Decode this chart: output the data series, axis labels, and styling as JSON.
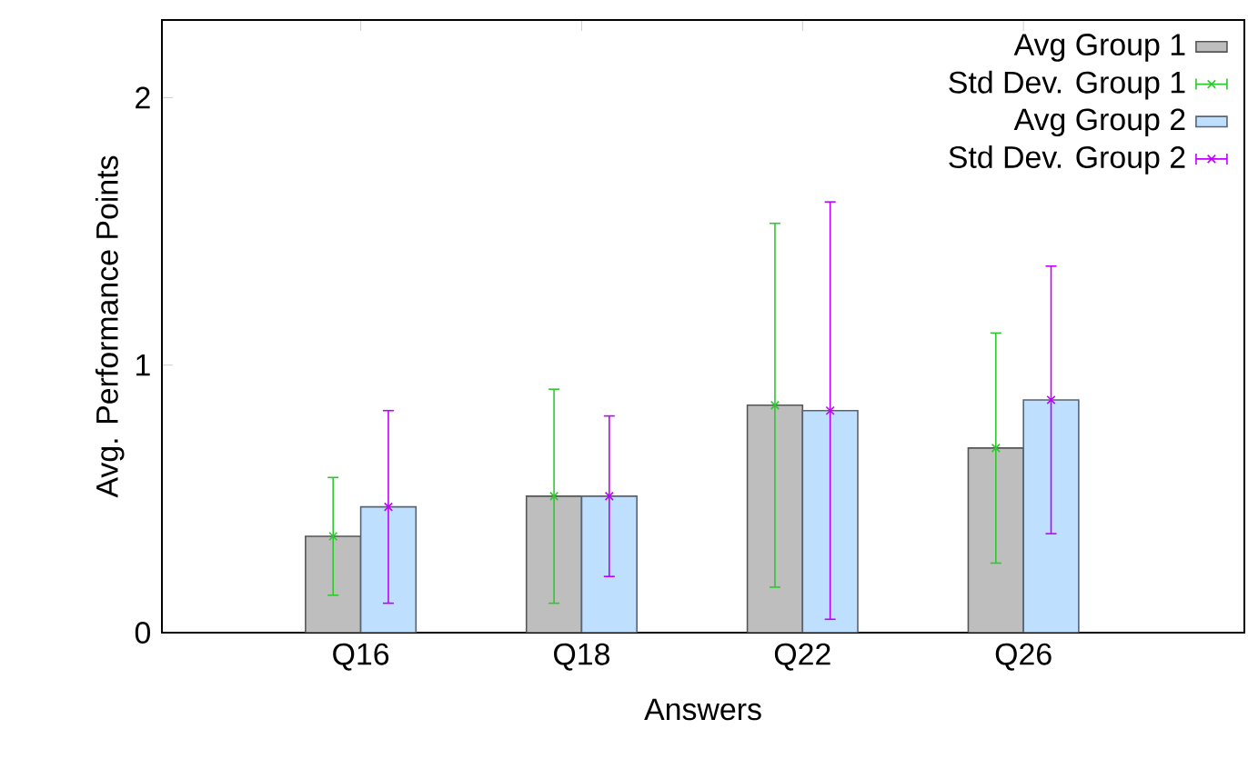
{
  "chart_data": {
    "type": "bar",
    "xlabel": "Answers",
    "ylabel": "Avg. Performance Points",
    "categories": [
      "Q16",
      "Q18",
      "Q22",
      "Q26"
    ],
    "series": [
      {
        "name": "Avg Group 1",
        "type": "bar",
        "color": "#bebebe",
        "values": [
          0.36,
          0.51,
          0.85,
          0.69
        ]
      },
      {
        "name": "Std Dev. Group 1",
        "type": "scatter",
        "color": "#2ec82e",
        "marker": "cross",
        "x": [
          "Q16",
          "Q18",
          "Q22",
          "Q26"
        ],
        "values": [
          0.36,
          0.51,
          0.85,
          0.69
        ],
        "errors": [
          0.22,
          0.4,
          0.68,
          0.43
        ]
      },
      {
        "name": "Avg Group 2",
        "type": "bar",
        "color": "#bfdfff",
        "values": [
          0.47,
          0.51,
          0.83,
          0.87
        ]
      },
      {
        "name": "Std Dev. Group 2",
        "type": "scatter",
        "color": "#c000ff",
        "marker": "cross",
        "x": [
          "Q16",
          "Q18",
          "Q22",
          "Q26"
        ],
        "values": [
          0.47,
          0.51,
          0.83,
          0.87
        ],
        "errors": [
          0.36,
          0.3,
          0.78,
          0.5
        ]
      }
    ],
    "ylim": [
      0,
      2.29
    ],
    "yticks": [
      0,
      1,
      2
    ],
    "legend": "top right"
  }
}
